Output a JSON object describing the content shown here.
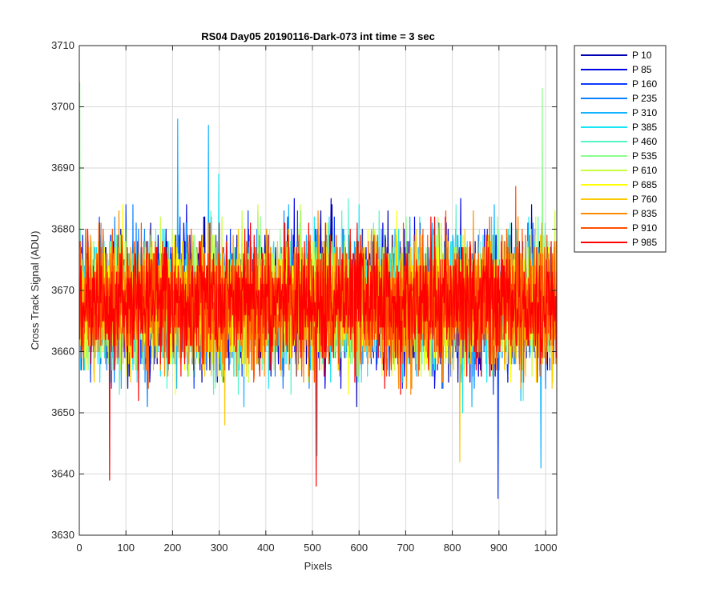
{
  "chart_data": {
    "type": "line",
    "title": "RS04 Day05 20190116-Dark-073 int time = 3 sec",
    "xlabel": "Pixels",
    "ylabel": "Cross Track Signal (ADU)",
    "xlim": [
      0,
      1024
    ],
    "ylim": [
      3630,
      3710
    ],
    "xticks": [
      0,
      100,
      200,
      300,
      400,
      500,
      600,
      700,
      800,
      900,
      1000
    ],
    "yticks": [
      3630,
      3640,
      3650,
      3660,
      3670,
      3680,
      3690,
      3700,
      3710
    ],
    "grid": true,
    "legend_position": "outside-right",
    "x_start": 1,
    "x_end": 1024,
    "series": [
      {
        "name": "P 10",
        "color": "#0000b0",
        "mean": 3668,
        "sd": 5,
        "seed": 11
      },
      {
        "name": "P 85",
        "color": "#0000e6",
        "mean": 3668,
        "sd": 5,
        "seed": 23
      },
      {
        "name": "P 160",
        "color": "#0a3cff",
        "mean": 3668,
        "sd": 5,
        "seed": 37
      },
      {
        "name": "P 235",
        "color": "#0a82ff",
        "mean": 3668,
        "sd": 5,
        "seed": 41
      },
      {
        "name": "P 310",
        "color": "#14b4ff",
        "mean": 3668,
        "sd": 5,
        "seed": 53
      },
      {
        "name": "P 385",
        "color": "#19e6f5",
        "mean": 3668,
        "sd": 5,
        "seed": 67
      },
      {
        "name": "P 460",
        "color": "#55f5c8",
        "mean": 3668,
        "sd": 5,
        "seed": 71
      },
      {
        "name": "P 535",
        "color": "#8cff8c",
        "mean": 3668,
        "sd": 5,
        "seed": 83
      },
      {
        "name": "P 610",
        "color": "#c8ff3c",
        "mean": 3668,
        "sd": 5,
        "seed": 97
      },
      {
        "name": "P 685",
        "color": "#ffff00",
        "mean": 3668,
        "sd": 5,
        "seed": 101
      },
      {
        "name": "P 760",
        "color": "#ffc800",
        "mean": 3668,
        "sd": 5,
        "seed": 113
      },
      {
        "name": "P 835",
        "color": "#ff8c00",
        "mean": 3668,
        "sd": 5,
        "seed": 127
      },
      {
        "name": "P 910",
        "color": "#ff5000",
        "mean": 3668,
        "sd": 5,
        "seed": 131
      },
      {
        "name": "P 985",
        "color": "#ff0000",
        "mean": 3668,
        "sd": 5,
        "seed": 149
      }
    ],
    "notable_points": [
      {
        "series": "P 535",
        "x": 1,
        "y": 3704
      },
      {
        "series": "P 310",
        "x": 211,
        "y": 3698
      },
      {
        "series": "P 310",
        "x": 277,
        "y": 3697
      },
      {
        "series": "P 535",
        "x": 993,
        "y": 3703
      },
      {
        "series": "P 985",
        "x": 65,
        "y": 3639
      },
      {
        "series": "P 985",
        "x": 508,
        "y": 3638
      },
      {
        "series": "P 160",
        "x": 898,
        "y": 3636
      },
      {
        "series": "P 310",
        "x": 990,
        "y": 3641
      },
      {
        "series": "P 760",
        "x": 816,
        "y": 3642
      },
      {
        "series": "P 385",
        "x": 510,
        "y": 3643
      }
    ]
  }
}
